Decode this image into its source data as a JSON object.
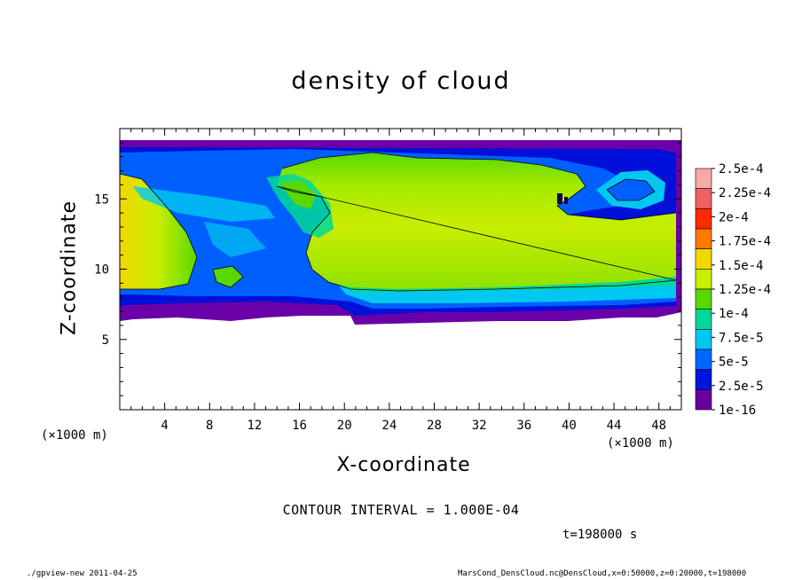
{
  "chart_data": {
    "type": "heatmap",
    "title": "density of cloud",
    "xlabel": "X-coordinate",
    "ylabel": "Z-coordinate",
    "x_unit": "(×1000 m)",
    "y_unit": "(×1000 m)",
    "xlim": [
      0,
      50
    ],
    "ylim": [
      0,
      20
    ],
    "x_ticks": [
      "4",
      "8",
      "12",
      "16",
      "20",
      "24",
      "28",
      "32",
      "36",
      "40",
      "44",
      "48"
    ],
    "y_ticks": [
      "5",
      "10",
      "15"
    ],
    "colorbar": {
      "labels": [
        "2.5e-4",
        "2.25e-4",
        "2e-4",
        "1.75e-4",
        "1.5e-4",
        "1.25e-4",
        "1e-4",
        "7.5e-5",
        "5e-5",
        "2.5e-5",
        "1e-16"
      ],
      "colors": [
        "#f8a8a8",
        "#f06060",
        "#ff2a00",
        "#ff7a00",
        "#f0d800",
        "#c8ee00",
        "#58d800",
        "#00d898",
        "#00c8f0",
        "#0068ff",
        "#0014e0",
        "#6800a0"
      ]
    },
    "contour_interval": "CONTOUR INTERVAL = 1.000E-04",
    "time": "t=198000 s"
  },
  "footer": {
    "left": "./gpview-new   2011-04-25",
    "right": "MarsCond_DensCloud.nc@DensCloud,x=0:50000,z=0:20000,t=198000"
  },
  "colors": {
    "purple": "#6a00a8",
    "blue_dark": "#0010d8",
    "blue": "#0060ff",
    "cyan": "#00c8f0",
    "teal": "#00d898",
    "green": "#58d800",
    "yellowgreen": "#b8ec00",
    "yellow": "#f0d800",
    "orange": "#ff7a00"
  }
}
